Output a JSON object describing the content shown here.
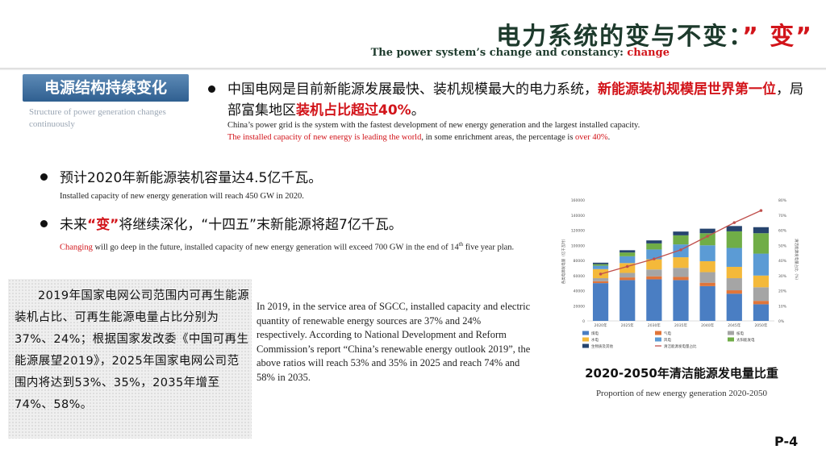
{
  "title": {
    "zh_prefix": "电力系统的变与不变：",
    "zh_highlight": "” 变”",
    "en_prefix": "The power system’s change and constancy: ",
    "en_highlight": "change"
  },
  "section": {
    "tag": "电源结构持续变化",
    "subtitle": "Structure of power generation changes continuously"
  },
  "bullets": [
    {
      "zh_a": "中国电网是目前新能源发展最快、装机规模最大的电力系统，",
      "zh_b": "新能源装机规模居世界第一位",
      "zh_c": "，局部富集地区",
      "zh_d": "装机占比超过40%",
      "zh_e": "。",
      "en_a": "China’s power grid is the system with the fastest development of new energy generation and the largest installed capacity.",
      "en_b": "The installed capacity of new energy is leading the world",
      "en_c": ", in some enrichment areas, the percentage is ",
      "en_d": "over 40%",
      "en_e": "."
    },
    {
      "zh": "预计2020年新能源装机容量达4.5亿千瓦。",
      "en": "Installed capacity of new energy generation will reach 450 GW in 2020."
    },
    {
      "zh_a": "未来",
      "zh_b": "“变”",
      "zh_c": "将继续深化，“十四五”末新能源将超7亿千瓦。",
      "en_a": "Changing",
      "en_b": " will go deep in the  future, installed capacity of new energy generation will exceed 700 GW in the end of 14",
      "en_sup": "th",
      "en_c": " five year plan."
    }
  ],
  "box_text": "2019年国家电网公司范围内可再生能源装机占比、可再生能源电量占比分别为37%、24%；根据国家发改委《中国可再生能源展望2019》，2025年国家电网公司范围内将达到53%、35%，2035年增至74%、58%。",
  "paragraph_en": "In 2019, in the service area of SGCC, installed capacity and electric quantity of renewable energy sources are 37% and 24% respectively. According to National Development and Reform Commission’s report “China’s renewable energy outlook 2019”, the above ratios will reach 53% and 35% in 2025 and reach 74% and 58%  in 2035.",
  "chart_caption": {
    "zh": "2020-2050年清洁能源发电量比重",
    "en": "Proportion of new energy generation 2020-2050"
  },
  "page_number": "P-4",
  "chart_data": {
    "type": "bar",
    "stacked": true,
    "title": "2020-2050年清洁能源发电量比重",
    "ylabel": "各类电源发电量（亿千瓦时）",
    "y2label": "清洁能源发电量占比（%）",
    "categories": [
      "2020年",
      "2025年",
      "2030年",
      "2035年",
      "2040年",
      "2045年",
      "2050年"
    ],
    "ylim": [
      0,
      160000
    ],
    "y2lim": [
      0,
      80
    ],
    "yticks": [
      "0",
      "20000",
      "40000",
      "60000",
      "80000",
      "100000",
      "120000",
      "140000",
      "160000"
    ],
    "y2ticks": [
      "0%",
      "10%",
      "20%",
      "30%",
      "40%",
      "50%",
      "60%",
      "70%",
      "80%"
    ],
    "series": [
      {
        "name": "煤电",
        "color": "#4a7ec3",
        "values": [
          50000,
          54000,
          55000,
          54000,
          46000,
          36000,
          22000
        ]
      },
      {
        "name": "气电",
        "color": "#e0753a",
        "values": [
          2500,
          3500,
          4000,
          4200,
          4500,
          4500,
          4500
        ]
      },
      {
        "name": "核电",
        "color": "#a5a5a5",
        "values": [
          4000,
          6000,
          9000,
          12000,
          14000,
          16000,
          18000
        ]
      },
      {
        "name": "水电",
        "color": "#f4b93a",
        "values": [
          12000,
          13000,
          13500,
          14000,
          14500,
          15000,
          15500
        ]
      },
      {
        "name": "风电",
        "color": "#5b9bd5",
        "values": [
          4500,
          9000,
          13000,
          17000,
          21000,
          25000,
          29000
        ]
      },
      {
        "name": "太阳能发电",
        "color": "#70ad47",
        "values": [
          2000,
          5000,
          8000,
          12000,
          16000,
          22000,
          27000
        ]
      },
      {
        "name": "生物质及其他",
        "color": "#26446e",
        "values": [
          2000,
          3000,
          4000,
          5000,
          6000,
          7000,
          8000
        ]
      }
    ],
    "line": {
      "name": "清洁能源发电量占比",
      "color": "#c0504d",
      "values": [
        31,
        36,
        41,
        47,
        56,
        65,
        73
      ]
    }
  }
}
